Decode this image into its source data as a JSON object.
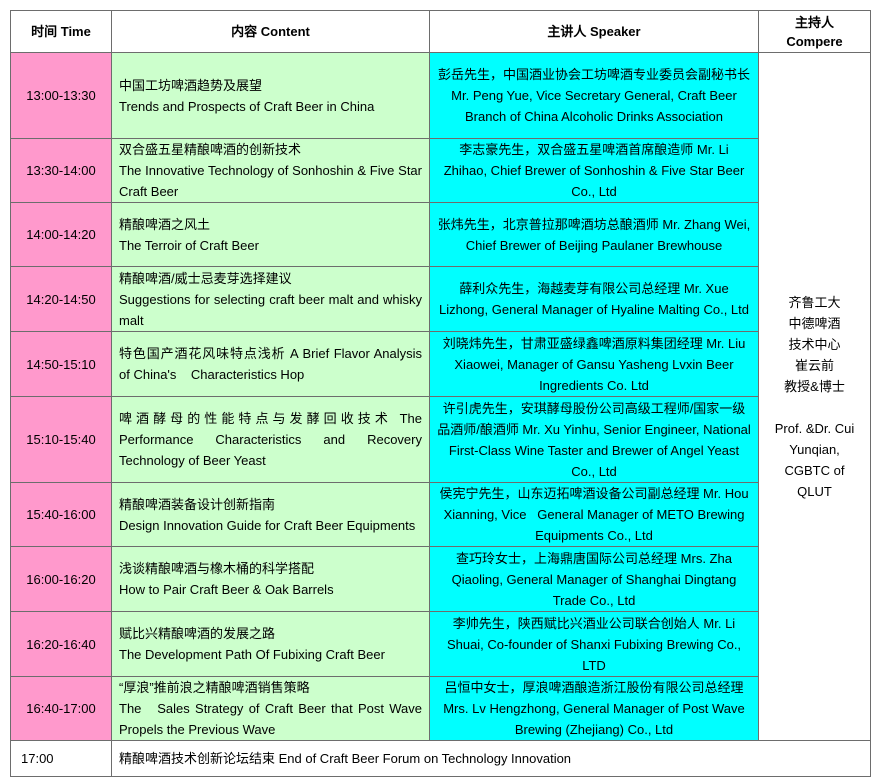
{
  "header": {
    "time": "时间 Time",
    "content": "内容 Content",
    "speaker": "主讲人 Speaker",
    "compere_cn": "主持人",
    "compere_en": "Compere"
  },
  "colors": {
    "time": "#ff99cc",
    "content": "#ccffcc",
    "speaker": "#00ffff"
  },
  "rows": [
    {
      "time": "13:00-13:30",
      "content_cn": "中国工坊啤酒趋势及展望",
      "content_en": "Trends and Prospects of Craft Beer in China",
      "speaker": "彭岳先生，中国酒业协会工坊啤酒专业委员会副秘书长 Mr. Peng Yue, Vice Secretary General, Craft Beer Branch of China Alcoholic Drinks Association"
    },
    {
      "time": "13:30-14:00",
      "content_cn": "双合盛五星精酿啤酒的创新技术",
      "content_en": "The Innovative Technology of Sonhoshin & Five Star Craft Beer",
      "speaker": "李志豪先生，双合盛五星啤酒首席酿造师 Mr. Li Zhihao, Chief Brewer of Sonhoshin & Five Star Beer Co., Ltd"
    },
    {
      "time": "14:00-14:20",
      "content_cn": "精酿啤酒之风土",
      "content_en": "The Terroir of Craft Beer",
      "speaker": "张炜先生，北京普拉那啤酒坊总酿酒师 Mr. Zhang Wei, Chief Brewer of Beijing Paulaner Brewhouse"
    },
    {
      "time": "14:20-14:50",
      "content_cn": "精酿啤酒/威士忌麦芽选择建议",
      "content_en": "Suggestions for selecting craft beer malt and whisky malt",
      "speaker": "薛利众先生，海越麦芽有限公司总经理 Mr. Xue Lizhong, General Manager of Hyaline Malting Co., Ltd"
    },
    {
      "time": "14:50-15:10",
      "content_cn": "特色国产酒花风味特点浅析",
      "content_en": "A Brief Flavor Analysis of China's    Characteristics Hop",
      "speaker": "刘晓炜先生，甘肃亚盛绿鑫啤酒原料集团经理 Mr. Liu Xiaowei, Manager of Gansu Yasheng Lvxin Beer Ingredients Co. Ltd"
    },
    {
      "time": "15:10-15:40",
      "content_cn": "啤酒酵母的性能特点与发酵回收技术",
      "content_en": "The Performance Characteristics and Recovery Technology of Beer Yeast",
      "speaker": "许引虎先生，安琪酵母股份公司高级工程师/国家一级品酒师/酿酒师 Mr. Xu Yinhu, Senior Engineer, National First-Class Wine Taster and Brewer of Angel Yeast Co., Ltd"
    },
    {
      "time": "15:40-16:00",
      "content_cn": "精酿啤酒装备设计创新指南",
      "content_en": "Design Innovation Guide for Craft Beer Equipments",
      "speaker": "侯宪宁先生，山东迈拓啤酒设备公司副总经理 Mr. Hou Xianning, Vice   General Manager of METO Brewing Equipments Co., Ltd"
    },
    {
      "time": "16:00-16:20",
      "content_cn": "浅谈精酿啤酒与橡木桶的科学搭配",
      "content_en": "How to Pair Craft Beer & Oak Barrels",
      "speaker": "查巧玲女士，上海鼎唐国际公司总经理 Mrs. Zha Qiaoling, General Manager of Shanghai Dingtang Trade Co., Ltd"
    },
    {
      "time": "16:20-16:40",
      "content_cn": "赋比兴精酿啤酒的发展之路",
      "content_en": "The Development Path Of Fubixing Craft Beer",
      "speaker": "李帅先生，陕西赋比兴酒业公司联合创始人 Mr. Li Shuai, Co-founder of Shanxi Fubixing Brewing Co., LTD"
    },
    {
      "time": "16:40-17:00",
      "content_cn": "“厚浪”推前浪之精酿啤酒销售策略",
      "content_en": "The   Sales Strategy of Craft Beer that Post Wave Propels the Previous Wave",
      "speaker": "吕恒中女士，厚浪啤酒酿造浙江股份有限公司总经理 Mrs. Lv Hengzhong, General Manager of Post Wave Brewing (Zhejiang) Co., Ltd"
    }
  ],
  "compere": {
    "cn": [
      "齐鲁工大",
      "中德啤酒",
      "技术中心",
      "崔云前",
      "教授&博士"
    ],
    "en": [
      "Prof. &Dr. Cui",
      "Yunqian,",
      "CGBTC of",
      "QLUT"
    ]
  },
  "end_row": {
    "time": "17:00",
    "text": "精酿啤酒技术创新论坛结束 End of Craft Beer Forum on Technology Innovation"
  }
}
